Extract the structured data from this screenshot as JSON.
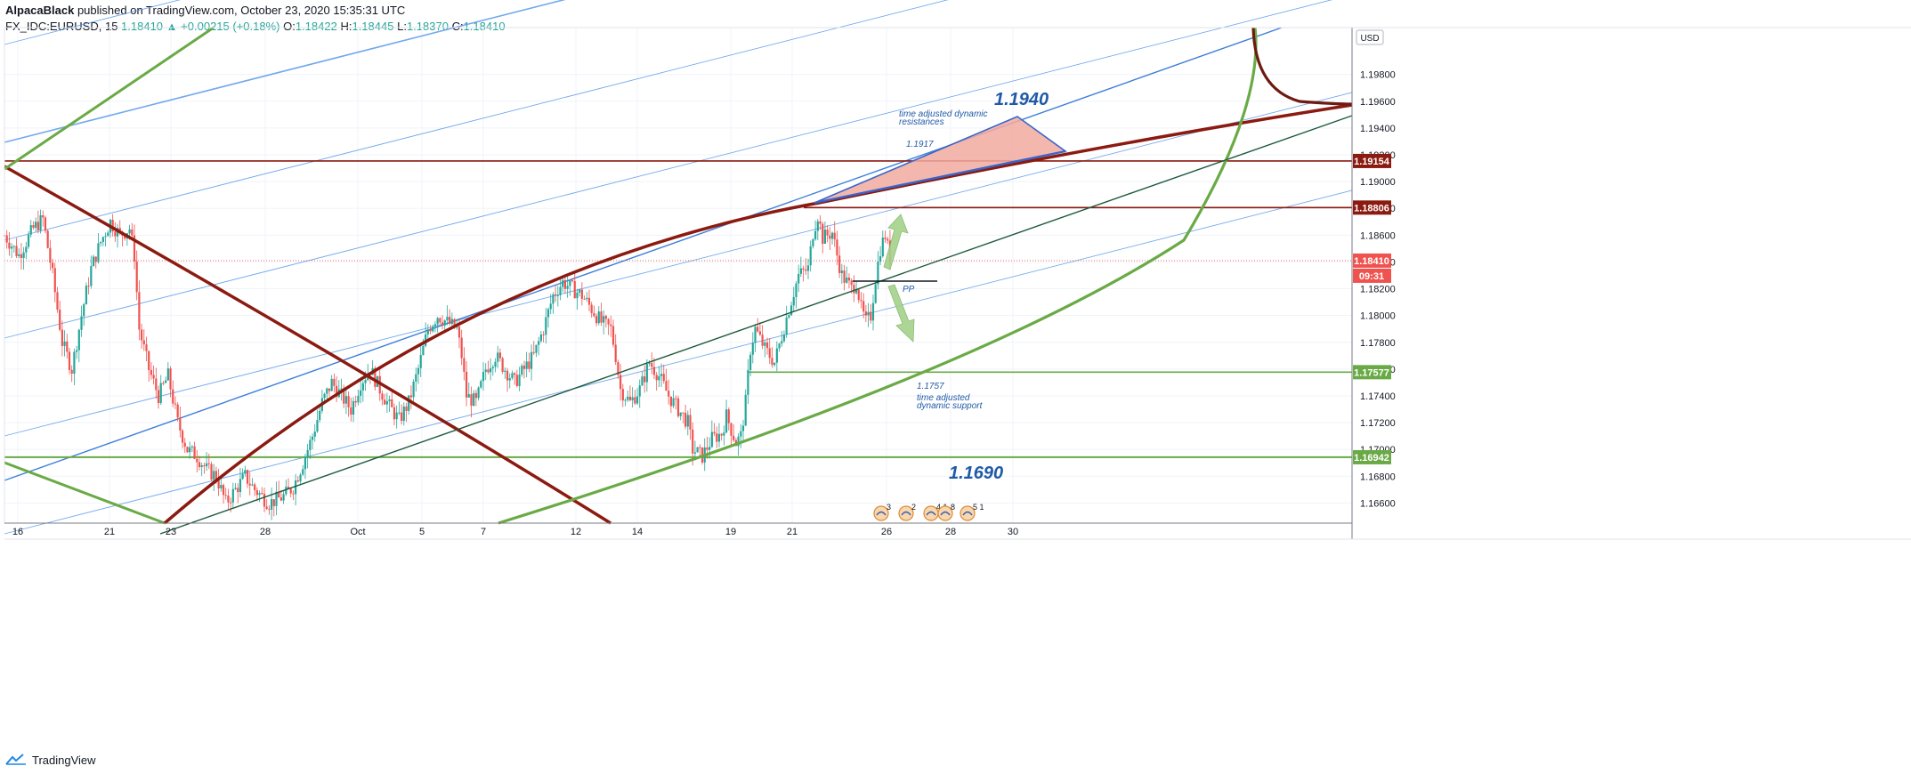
{
  "header": {
    "author": "AlpacaBlack",
    "published": "published on TradingView.com, October 23, 2020 15:35:31 UTC"
  },
  "ohlc": {
    "symbol": "FX_IDC:EURUSD, 15",
    "last": "1.18410",
    "change": "+0.00215 (+0.18%)",
    "o_label": "O:",
    "o": "1.18422",
    "h_label": "H:",
    "h": "1.18445",
    "l_label": "L:",
    "l": "1.18370",
    "c_label": "C:",
    "c": "1.18410"
  },
  "footer": {
    "brand": "TradingView"
  },
  "colors": {
    "candle_up": "#26a69a",
    "candle_down": "#ef5350",
    "channel_blue": "#4a8fe0",
    "dark_red": "#8b1a10",
    "green": "#6aaa46",
    "dark_green": "#1d5a3c",
    "fill_red": "#f2aaa0",
    "annotation_blue": "#1f5aa6"
  },
  "chart_data": {
    "type": "candlestick",
    "currency": "USD",
    "ylim": [
      1.1645,
      1.2015
    ],
    "y_ticks": [
      "1.16600",
      "1.16800",
      "1.17000",
      "1.17200",
      "1.17400",
      "1.17600",
      "1.17800",
      "1.18000",
      "1.18200",
      "1.18400",
      "1.18600",
      "1.18800",
      "1.19000",
      "1.19200",
      "1.19400",
      "1.19600",
      "1.19800"
    ],
    "x_ticks": [
      "16",
      "21",
      "23",
      "28",
      "Oct",
      "5",
      "7",
      "12",
      "14",
      "19",
      "21",
      "26",
      "28",
      "30"
    ],
    "price_tags": [
      {
        "label": "1.19154",
        "value": 1.19154,
        "color": "#8b1a10"
      },
      {
        "label": "1.18806",
        "value": 1.18806,
        "color": "#8b1a10"
      },
      {
        "label": "1.18410",
        "value": 1.1841,
        "color": "#ef5350"
      },
      {
        "label": "09:31",
        "value": 1.1825,
        "color": "#ef5350"
      },
      {
        "label": "1.17577",
        "value": 1.17577,
        "color": "#6aaa46"
      },
      {
        "label": "1.16942",
        "value": 1.16942,
        "color": "#6aaa46"
      }
    ],
    "annotations": [
      {
        "text": "1.1940",
        "style": "big"
      },
      {
        "text": "time adjusted dynamic",
        "style": "small"
      },
      {
        "text": "resistances",
        "style": "small"
      },
      {
        "text": "1.1917",
        "style": "small"
      },
      {
        "text": "PP",
        "style": "small"
      },
      {
        "text": "1.1757",
        "style": "small"
      },
      {
        "text": "time adjusted",
        "style": "small"
      },
      {
        "text": "dynamic support",
        "style": "small"
      },
      {
        "text": "1.1690",
        "style": "big"
      }
    ],
    "event_badges": [
      "3",
      "2",
      "4 1",
      "8",
      "5 1"
    ],
    "price_path": [
      [
        0,
        1.186
      ],
      [
        3,
        1.1845
      ],
      [
        6,
        1.1865
      ],
      [
        8,
        1.1872
      ],
      [
        10,
        1.183
      ],
      [
        12,
        1.178
      ],
      [
        14,
        1.176
      ],
      [
        16,
        1.18
      ],
      [
        18,
        1.1835
      ],
      [
        20,
        1.1855
      ],
      [
        22,
        1.187
      ],
      [
        24,
        1.186
      ],
      [
        26,
        1.1865
      ],
      [
        27,
        1.1845
      ],
      [
        28,
        1.179
      ],
      [
        30,
        1.176
      ],
      [
        32,
        1.174
      ],
      [
        34,
        1.1755
      ],
      [
        36,
        1.172
      ],
      [
        38,
        1.17
      ],
      [
        40,
        1.1695
      ],
      [
        42,
        1.1685
      ],
      [
        44,
        1.168
      ],
      [
        46,
        1.166
      ],
      [
        48,
        1.167
      ],
      [
        50,
        1.168
      ],
      [
        52,
        1.167
      ],
      [
        55,
        1.166
      ],
      [
        58,
        1.1665
      ],
      [
        60,
        1.1672
      ],
      [
        62,
        1.169
      ],
      [
        64,
        1.171
      ],
      [
        66,
        1.1735
      ],
      [
        68,
        1.175
      ],
      [
        70,
        1.174
      ],
      [
        72,
        1.173
      ],
      [
        74,
        1.175
      ],
      [
        76,
        1.176
      ],
      [
        78,
        1.1745
      ],
      [
        80,
        1.1732
      ],
      [
        82,
        1.1722
      ],
      [
        84,
        1.1735
      ],
      [
        86,
        1.176
      ],
      [
        88,
        1.179
      ],
      [
        90,
        1.18
      ],
      [
        92,
        1.1795
      ],
      [
        94,
        1.179
      ],
      [
        95,
        1.177
      ],
      [
        96,
        1.174
      ],
      [
        98,
        1.1735
      ],
      [
        100,
        1.176
      ],
      [
        102,
        1.177
      ],
      [
        104,
        1.176
      ],
      [
        106,
        1.175
      ],
      [
        108,
        1.176
      ],
      [
        110,
        1.177
      ],
      [
        112,
        1.179
      ],
      [
        114,
        1.1815
      ],
      [
        116,
        1.1825
      ],
      [
        118,
        1.182
      ],
      [
        120,
        1.1815
      ],
      [
        122,
        1.1805
      ],
      [
        124,
        1.1795
      ],
      [
        126,
        1.179
      ],
      [
        127,
        1.177
      ],
      [
        128,
        1.1745
      ],
      [
        130,
        1.1735
      ],
      [
        132,
        1.1745
      ],
      [
        134,
        1.1765
      ],
      [
        136,
        1.1755
      ],
      [
        138,
        1.174
      ],
      [
        140,
        1.173
      ],
      [
        142,
        1.172
      ],
      [
        143,
        1.17
      ],
      [
        145,
        1.1695
      ],
      [
        147,
        1.1708
      ],
      [
        149,
        1.1712
      ],
      [
        150,
        1.1725
      ],
      [
        151,
        1.1715
      ],
      [
        152,
        1.1705
      ],
      [
        153,
        1.171
      ],
      [
        154,
        1.1735
      ],
      [
        155,
        1.1775
      ],
      [
        156,
        1.179
      ],
      [
        158,
        1.1775
      ],
      [
        160,
        1.1765
      ],
      [
        161,
        1.1778
      ],
      [
        163,
        1.1805
      ],
      [
        165,
        1.183
      ],
      [
        167,
        1.1835
      ],
      [
        168,
        1.1862
      ],
      [
        169,
        1.1875
      ],
      [
        170,
        1.1858
      ],
      [
        172,
        1.1862
      ],
      [
        173,
        1.1845
      ],
      [
        174,
        1.183
      ],
      [
        176,
        1.182
      ],
      [
        177,
        1.1825
      ],
      [
        178,
        1.1805
      ],
      [
        179,
        1.1795
      ],
      [
        180,
        1.18
      ],
      [
        181,
        1.1828
      ],
      [
        182,
        1.185
      ],
      [
        183,
        1.186
      ],
      [
        184,
        1.1842
      ]
    ],
    "path_x_max": 280,
    "path_segments_per_unit": 2
  }
}
